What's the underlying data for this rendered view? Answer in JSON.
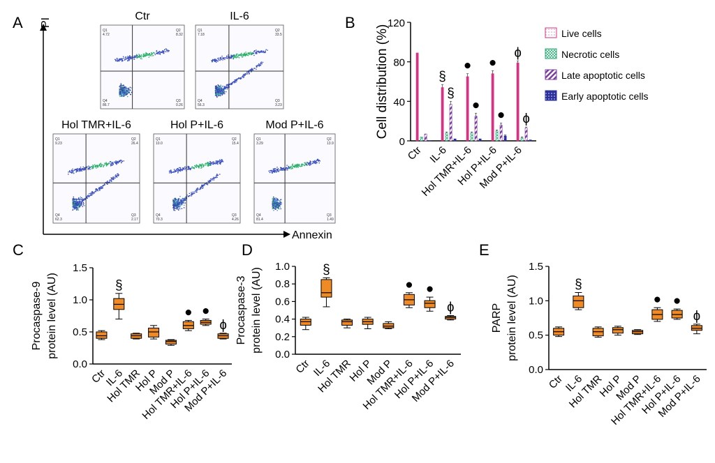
{
  "panels": {
    "a": "A",
    "b": "B",
    "c": "C",
    "d": "D",
    "e": "E"
  },
  "flow": {
    "y_axis_label": "PI",
    "x_axis_label": "Annexin",
    "plots": [
      {
        "title": "Ctr",
        "q1": "Q1",
        "q1_val": "4.72",
        "q2": "Q2",
        "q2_val": "8.32",
        "q3": "Q3",
        "q3_val": "0.26",
        "q4": "Q4",
        "q4_val": "86.7"
      },
      {
        "title": "IL-6",
        "q1": "Q1",
        "q1_val": "7.18",
        "q2": "Q2",
        "q2_val": "33.5",
        "q3": "Q3",
        "q3_val": "3.23",
        "q4": "Q4",
        "q4_val": "56.3"
      },
      {
        "title": "Hol TMR+IL-6",
        "q1": "Q1",
        "q1_val": "9.23",
        "q2": "Q2",
        "q2_val": "26.4",
        "q3": "Q3",
        "q3_val": "2.17",
        "q4": "Q4",
        "q4_val": "62.3"
      },
      {
        "title": "Hol P+IL-6",
        "q1": "Q1",
        "q1_val": "10.0",
        "q2": "Q2",
        "q2_val": "15.4",
        "q3": "Q3",
        "q3_val": "4.26",
        "q4": "Q4",
        "q4_val": "70.3"
      },
      {
        "title": "Mod P+IL-6",
        "q1": "Q1",
        "q1_val": "3.29",
        "q2": "Q2",
        "q2_val": "13.9",
        "q3": "Q3",
        "q3_val": "1.49",
        "q4": "Q4",
        "q4_val": "81.4"
      }
    ]
  },
  "chart_data": [
    {
      "id": "B",
      "type": "bar",
      "ylabel": "Cell distribution (%)",
      "ylim": [
        0,
        120
      ],
      "yticks": [
        "0",
        "40",
        "80",
        "120"
      ],
      "categories": [
        "Ctr",
        "IL-6",
        "Hol TMR+IL-6",
        "Hol P+IL-6",
        "Mod P+IL-6"
      ],
      "series": [
        {
          "name": "Live cells",
          "color": "#d63384",
          "values": [
            89,
            54,
            65,
            68,
            79
          ],
          "errors": [
            0,
            3,
            3,
            3,
            2
          ]
        },
        {
          "name": "Necrotic cells",
          "color": "#2fa87a",
          "values": [
            4,
            8,
            8,
            10,
            3
          ],
          "errors": [
            0,
            1,
            1,
            1,
            1
          ]
        },
        {
          "name": "Late apoptotic cells",
          "color": "#7b3fa0",
          "values": [
            7,
            37,
            25,
            16,
            13
          ],
          "errors": [
            0,
            3,
            3,
            2,
            1
          ]
        },
        {
          "name": "Early apoptotic cells",
          "color": "#2a2f9c",
          "values": [
            0,
            2,
            2,
            5,
            1
          ],
          "errors": [
            0,
            0,
            0,
            1,
            0
          ]
        }
      ],
      "annotations": [
        {
          "category": "IL-6",
          "series": "Live cells",
          "symbol": "§"
        },
        {
          "category": "IL-6",
          "series": "Late apoptotic cells",
          "symbol": "§"
        },
        {
          "category": "Hol TMR+IL-6",
          "series": "Live cells",
          "symbol": "●"
        },
        {
          "category": "Hol TMR+IL-6",
          "series": "Late apoptotic cells",
          "symbol": "●"
        },
        {
          "category": "Hol P+IL-6",
          "series": "Live cells",
          "symbol": "●"
        },
        {
          "category": "Hol P+IL-6",
          "series": "Late apoptotic cells",
          "symbol": "●"
        },
        {
          "category": "Mod P+IL-6",
          "series": "Live cells",
          "symbol": "ɸ"
        },
        {
          "category": "Mod P+IL-6",
          "series": "Late apoptotic cells",
          "symbol": "ɸ"
        }
      ]
    },
    {
      "id": "C",
      "type": "box",
      "ylabel_top": "Procaspase-9",
      "ylabel": "protein level (AU)",
      "ylim": [
        0,
        1.5
      ],
      "yticks": [
        "0.0",
        "0.5",
        "1.0",
        "1.5"
      ],
      "categories": [
        "Ctr",
        "IL-6",
        "Hol TMR",
        "Hol P",
        "Mod P",
        "Hol TMR+IL-6",
        "Hol P+IL-6",
        "Mod P+IL-6"
      ],
      "boxes": [
        {
          "min": 0.38,
          "q1": 0.4,
          "median": 0.44,
          "q3": 0.5,
          "max": 0.52
        },
        {
          "min": 0.7,
          "q1": 0.85,
          "median": 0.93,
          "q3": 1.02,
          "max": 1.1
        },
        {
          "min": 0.39,
          "q1": 0.4,
          "median": 0.44,
          "q3": 0.47,
          "max": 0.48
        },
        {
          "min": 0.39,
          "q1": 0.42,
          "median": 0.5,
          "q3": 0.56,
          "max": 0.6
        },
        {
          "min": 0.29,
          "q1": 0.31,
          "median": 0.35,
          "q3": 0.37,
          "max": 0.38
        },
        {
          "min": 0.52,
          "q1": 0.55,
          "median": 0.6,
          "q3": 0.66,
          "max": 0.68
        },
        {
          "min": 0.6,
          "q1": 0.62,
          "median": 0.65,
          "q3": 0.68,
          "max": 0.7
        },
        {
          "min": 0.39,
          "q1": 0.4,
          "median": 0.44,
          "q3": 0.47,
          "max": 0.48
        }
      ],
      "annotations": [
        "",
        "§",
        "",
        "",
        "",
        "●",
        "●",
        "ɸ"
      ]
    },
    {
      "id": "D",
      "type": "box",
      "ylabel_top": "Procaspase-3",
      "ylabel": "protein level (AU)",
      "ylim": [
        0,
        1.0
      ],
      "yticks": [
        "0.0",
        "0.2",
        "0.4",
        "0.6",
        "0.8",
        "1.0"
      ],
      "categories": [
        "Ctr",
        "IL-6",
        "Hol TMR",
        "Hol P",
        "Mod P",
        "Hol TMR+IL-6",
        "Hol P+IL-6",
        "Mod P+IL-6"
      ],
      "boxes": [
        {
          "min": 0.28,
          "q1": 0.33,
          "median": 0.37,
          "q3": 0.4,
          "max": 0.42
        },
        {
          "min": 0.54,
          "q1": 0.65,
          "median": 0.7,
          "q3": 0.85,
          "max": 0.87
        },
        {
          "min": 0.3,
          "q1": 0.33,
          "median": 0.37,
          "q3": 0.39,
          "max": 0.4
        },
        {
          "min": 0.29,
          "q1": 0.34,
          "median": 0.37,
          "q3": 0.4,
          "max": 0.42
        },
        {
          "min": 0.29,
          "q1": 0.3,
          "median": 0.32,
          "q3": 0.35,
          "max": 0.37
        },
        {
          "min": 0.53,
          "q1": 0.56,
          "median": 0.62,
          "q3": 0.68,
          "max": 0.7
        },
        {
          "min": 0.49,
          "q1": 0.53,
          "median": 0.58,
          "q3": 0.61,
          "max": 0.65
        },
        {
          "min": 0.39,
          "q1": 0.4,
          "median": 0.42,
          "q3": 0.43,
          "max": 0.44
        }
      ],
      "annotations": [
        "",
        "§",
        "",
        "",
        "",
        "●",
        "●",
        "ɸ"
      ]
    },
    {
      "id": "E",
      "type": "box",
      "ylabel_top": "PARP",
      "ylabel": "protein level (AU)",
      "ylim": [
        0,
        1.5
      ],
      "yticks": [
        "0.0",
        "0.5",
        "1.0",
        "1.5"
      ],
      "categories": [
        "Ctr",
        "IL-6",
        "Hol TMR",
        "Hol P",
        "Mod P",
        "Hol TMR+IL-6",
        "Hol P+IL-6",
        "Mod P+IL-6"
      ],
      "boxes": [
        {
          "min": 0.48,
          "q1": 0.5,
          "median": 0.55,
          "q3": 0.6,
          "max": 0.62
        },
        {
          "min": 0.87,
          "q1": 0.9,
          "median": 1.0,
          "q3": 1.07,
          "max": 1.12
        },
        {
          "min": 0.47,
          "q1": 0.49,
          "median": 0.55,
          "q3": 0.6,
          "max": 0.62
        },
        {
          "min": 0.5,
          "q1": 0.53,
          "median": 0.58,
          "q3": 0.61,
          "max": 0.63
        },
        {
          "min": 0.51,
          "q1": 0.52,
          "median": 0.55,
          "q3": 0.57,
          "max": 0.58
        },
        {
          "min": 0.7,
          "q1": 0.73,
          "median": 0.8,
          "q3": 0.87,
          "max": 0.9
        },
        {
          "min": 0.73,
          "q1": 0.75,
          "median": 0.8,
          "q3": 0.86,
          "max": 0.88
        },
        {
          "min": 0.52,
          "q1": 0.57,
          "median": 0.6,
          "q3": 0.64,
          "max": 0.66
        }
      ],
      "annotations": [
        "",
        "§",
        "",
        "",
        "",
        "●",
        "●",
        "ɸ"
      ]
    }
  ]
}
